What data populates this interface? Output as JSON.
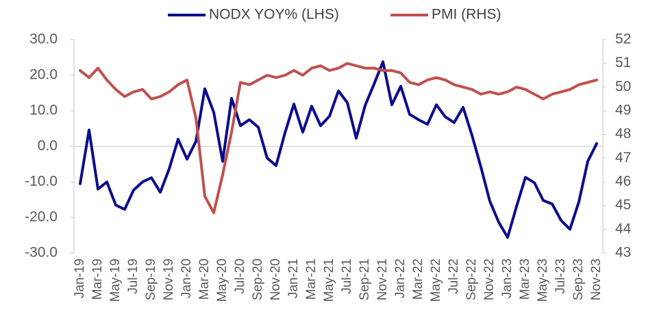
{
  "chart_data": {
    "type": "line",
    "categories": [
      "Jan-19",
      null,
      "Mar-19",
      null,
      "May-19",
      null,
      "Jul-19",
      null,
      "Sep-19",
      null,
      "Nov-19",
      null,
      "Jan-20",
      null,
      "Mar-20",
      null,
      "May-20",
      null,
      "Jul-20",
      null,
      "Sep-20",
      null,
      "Nov-20",
      null,
      "Jan-21",
      null,
      "Mar-21",
      null,
      "May-21",
      null,
      "Jul-21",
      null,
      "Sep-21",
      null,
      "Nov-21",
      null,
      "Jan-22",
      null,
      "Mar-22",
      null,
      "May-22",
      null,
      "Jul-22",
      null,
      "Sep-22",
      null,
      "Nov-22",
      null,
      "Jan-23",
      null,
      "Mar-23",
      null,
      "May-23",
      null,
      "Jul-23",
      null,
      "Sep-23",
      null,
      "Nov-23"
    ],
    "series": [
      {
        "name": "NODX YOY% (LHS)",
        "color": "#0c0c8c",
        "axis": "y",
        "values": [
          -10.5,
          4.6,
          -12,
          -10,
          -16.5,
          -17.7,
          -12.3,
          -10,
          -8.8,
          -12.9,
          -6.3,
          2,
          -3.6,
          1.4,
          16.2,
          9.6,
          -4.2,
          13.5,
          5.8,
          7.5,
          5.4,
          -3.3,
          -5.4,
          3.8,
          11.9,
          4,
          11.3,
          5.8,
          8.5,
          15.6,
          12.3,
          2.3,
          11.5,
          17.5,
          23.8,
          11.7,
          16.9,
          9,
          7.5,
          6.2,
          11.7,
          8.3,
          6.7,
          11,
          3.1,
          -5.8,
          -15.4,
          -21.3,
          -25.6,
          -16.9,
          -8.7,
          -10.2,
          -15.2,
          -16.2,
          -20.8,
          -23.3,
          -15.6,
          -4.2,
          0.8
        ]
      },
      {
        "name": "PMI (RHS)",
        "color": "#c0504d",
        "axis": "y2",
        "values": [
          50.7,
          50.4,
          50.8,
          50.3,
          49.9,
          49.6,
          49.8,
          49.9,
          49.5,
          49.6,
          49.8,
          50.1,
          50.3,
          48.7,
          45.4,
          44.7,
          46.3,
          48.1,
          50.2,
          50.1,
          50.3,
          50.5,
          50.4,
          50.5,
          50.7,
          50.5,
          50.8,
          50.9,
          50.7,
          50.8,
          51,
          50.9,
          50.8,
          50.8,
          50.7,
          50.7,
          50.6,
          50.2,
          50.1,
          50.3,
          50.4,
          50.3,
          50.1,
          50,
          49.9,
          49.7,
          49.8,
          49.7,
          49.8,
          50,
          49.9,
          49.7,
          49.5,
          49.7,
          49.8,
          49.9,
          50.1,
          50.2,
          50.3
        ]
      }
    ],
    "ylim": [
      -30,
      30
    ],
    "yticks": [
      {
        "value": -30,
        "label": "-30.0"
      },
      {
        "value": -20,
        "label": "-20.0"
      },
      {
        "value": -10,
        "label": "-10.0"
      },
      {
        "value": 0,
        "label": "0.0"
      },
      {
        "value": 10,
        "label": "10.0"
      },
      {
        "value": 20,
        "label": "20.0"
      },
      {
        "value": 30,
        "label": "30.0"
      }
    ],
    "y2lim": [
      43,
      52
    ],
    "y2ticks": [
      43,
      44,
      45,
      46,
      47,
      48,
      49,
      50,
      51,
      52
    ],
    "legend": "top"
  }
}
